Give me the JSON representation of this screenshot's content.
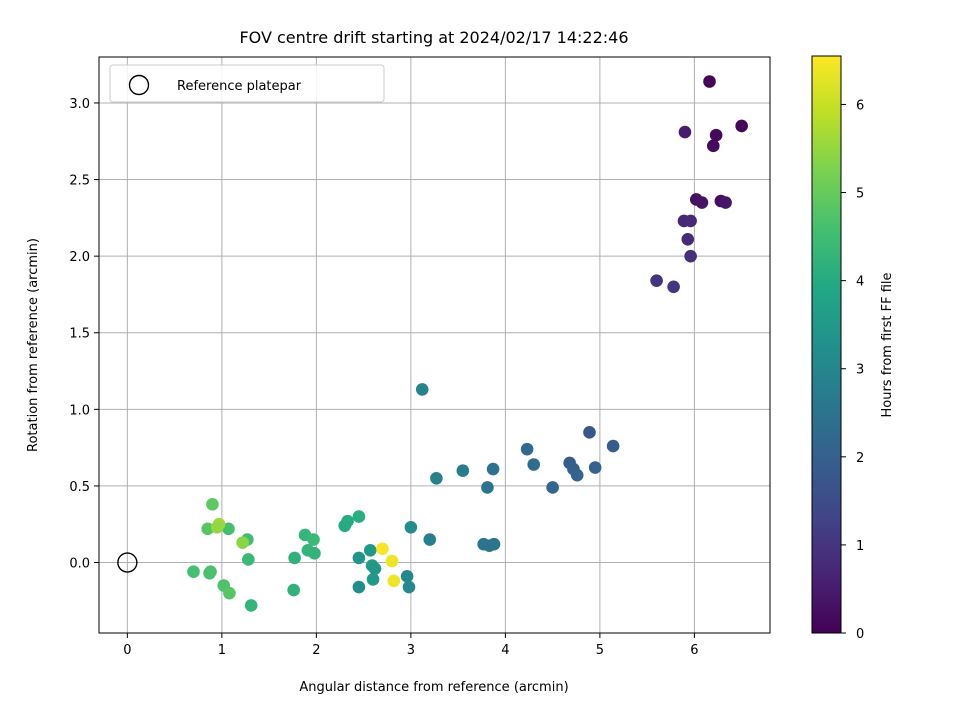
{
  "chart_data": {
    "type": "scatter",
    "title": "FOV centre drift starting at 2024/02/17 14:22:46",
    "xlabel": "Angular distance from reference (arcmin)",
    "ylabel": "Rotation from reference (arcmin)",
    "xlim": [
      -0.3,
      6.8
    ],
    "ylim": [
      -0.46,
      3.3
    ],
    "xticks": [
      0,
      1,
      2,
      3,
      4,
      5,
      6
    ],
    "xtick_labels": [
      "0",
      "1",
      "2",
      "3",
      "4",
      "5",
      "6"
    ],
    "yticks": [
      0.0,
      0.5,
      1.0,
      1.5,
      2.0,
      2.5,
      3.0
    ],
    "ytick_labels": [
      "0.0",
      "0.5",
      "1.0",
      "1.5",
      "2.0",
      "2.5",
      "3.0"
    ],
    "grid": true,
    "legend": {
      "location": "upper-left",
      "entries": [
        "Reference platepar"
      ]
    },
    "reference_point": {
      "x": 0,
      "y": 0
    },
    "colorbar": {
      "label": "Hours from first FF file",
      "colormap": "viridis",
      "range": [
        0,
        6.55
      ],
      "ticks": [
        0,
        1,
        2,
        3,
        4,
        5,
        6
      ],
      "tick_labels": [
        "0",
        "1",
        "2",
        "3",
        "4",
        "5",
        "6"
      ]
    },
    "series": [
      {
        "points": [
          {
            "x": 6.16,
            "y": 3.14,
            "c": 0.05
          },
          {
            "x": 6.5,
            "y": 2.85,
            "c": 0.1
          },
          {
            "x": 6.23,
            "y": 2.79,
            "c": 0.15
          },
          {
            "x": 6.2,
            "y": 2.72,
            "c": 0.2
          },
          {
            "x": 5.9,
            "y": 2.81,
            "c": 0.5
          },
          {
            "x": 6.02,
            "y": 2.37,
            "c": 0.3
          },
          {
            "x": 6.08,
            "y": 2.35,
            "c": 0.35
          },
          {
            "x": 6.28,
            "y": 2.36,
            "c": 0.25
          },
          {
            "x": 6.33,
            "y": 2.35,
            "c": 0.4
          },
          {
            "x": 5.89,
            "y": 2.23,
            "c": 0.7
          },
          {
            "x": 5.96,
            "y": 2.23,
            "c": 0.75
          },
          {
            "x": 5.93,
            "y": 2.11,
            "c": 0.8
          },
          {
            "x": 5.96,
            "y": 2.0,
            "c": 0.9
          },
          {
            "x": 5.6,
            "y": 1.84,
            "c": 1.0
          },
          {
            "x": 5.78,
            "y": 1.8,
            "c": 1.05
          },
          {
            "x": 4.89,
            "y": 0.85,
            "c": 1.8
          },
          {
            "x": 5.14,
            "y": 0.76,
            "c": 1.9
          },
          {
            "x": 4.68,
            "y": 0.65,
            "c": 1.95
          },
          {
            "x": 4.72,
            "y": 0.61,
            "c": 2.0
          },
          {
            "x": 4.95,
            "y": 0.62,
            "c": 2.05
          },
          {
            "x": 4.76,
            "y": 0.57,
            "c": 2.1
          },
          {
            "x": 4.5,
            "y": 0.49,
            "c": 2.15
          },
          {
            "x": 4.23,
            "y": 0.74,
            "c": 2.2
          },
          {
            "x": 4.3,
            "y": 0.64,
            "c": 2.3
          },
          {
            "x": 3.87,
            "y": 0.61,
            "c": 2.5
          },
          {
            "x": 3.81,
            "y": 0.49,
            "c": 2.5
          },
          {
            "x": 3.77,
            "y": 0.12,
            "c": 2.45
          },
          {
            "x": 3.83,
            "y": 0.11,
            "c": 2.5
          },
          {
            "x": 3.88,
            "y": 0.12,
            "c": 2.55
          },
          {
            "x": 3.55,
            "y": 0.6,
            "c": 2.7
          },
          {
            "x": 3.27,
            "y": 0.55,
            "c": 2.85
          },
          {
            "x": 3.12,
            "y": 1.13,
            "c": 2.9
          },
          {
            "x": 3.2,
            "y": 0.15,
            "c": 2.8
          },
          {
            "x": 3.0,
            "y": 0.23,
            "c": 3.2
          },
          {
            "x": 2.96,
            "y": -0.09,
            "c": 3.0
          },
          {
            "x": 2.98,
            "y": -0.16,
            "c": 3.05
          },
          {
            "x": 2.45,
            "y": 0.03,
            "c": 3.4
          },
          {
            "x": 2.45,
            "y": -0.16,
            "c": 3.2
          },
          {
            "x": 2.57,
            "y": 0.08,
            "c": 3.5
          },
          {
            "x": 2.59,
            "y": -0.02,
            "c": 3.6
          },
          {
            "x": 2.62,
            "y": -0.04,
            "c": 3.45
          },
          {
            "x": 2.6,
            "y": -0.11,
            "c": 3.5
          },
          {
            "x": 2.3,
            "y": 0.24,
            "c": 4.0
          },
          {
            "x": 2.33,
            "y": 0.27,
            "c": 4.0
          },
          {
            "x": 2.45,
            "y": 0.3,
            "c": 4.1
          },
          {
            "x": 1.88,
            "y": 0.18,
            "c": 4.3
          },
          {
            "x": 1.97,
            "y": 0.15,
            "c": 4.4
          },
          {
            "x": 1.91,
            "y": 0.08,
            "c": 4.3
          },
          {
            "x": 1.98,
            "y": 0.06,
            "c": 4.25
          },
          {
            "x": 1.77,
            "y": 0.03,
            "c": 4.2
          },
          {
            "x": 1.76,
            "y": -0.18,
            "c": 4.2
          },
          {
            "x": 1.31,
            "y": -0.28,
            "c": 4.3
          },
          {
            "x": 1.28,
            "y": 0.02,
            "c": 4.4
          },
          {
            "x": 1.27,
            "y": 0.15,
            "c": 4.5
          },
          {
            "x": 1.07,
            "y": 0.22,
            "c": 4.6
          },
          {
            "x": 0.85,
            "y": 0.22,
            "c": 4.8
          },
          {
            "x": 0.9,
            "y": 0.38,
            "c": 4.9
          },
          {
            "x": 0.7,
            "y": -0.06,
            "c": 4.6
          },
          {
            "x": 0.87,
            "y": -0.07,
            "c": 4.7
          },
          {
            "x": 0.88,
            "y": -0.06,
            "c": 4.65
          },
          {
            "x": 1.02,
            "y": -0.15,
            "c": 4.7
          },
          {
            "x": 1.08,
            "y": -0.2,
            "c": 4.8
          },
          {
            "x": 0.97,
            "y": 0.25,
            "c": 5.6
          },
          {
            "x": 0.95,
            "y": 0.23,
            "c": 5.5
          },
          {
            "x": 1.22,
            "y": 0.13,
            "c": 5.4
          },
          {
            "x": 2.7,
            "y": 0.09,
            "c": 6.5
          },
          {
            "x": 2.8,
            "y": 0.01,
            "c": 6.4
          },
          {
            "x": 2.82,
            "y": -0.12,
            "c": 6.4
          }
        ]
      }
    ]
  }
}
